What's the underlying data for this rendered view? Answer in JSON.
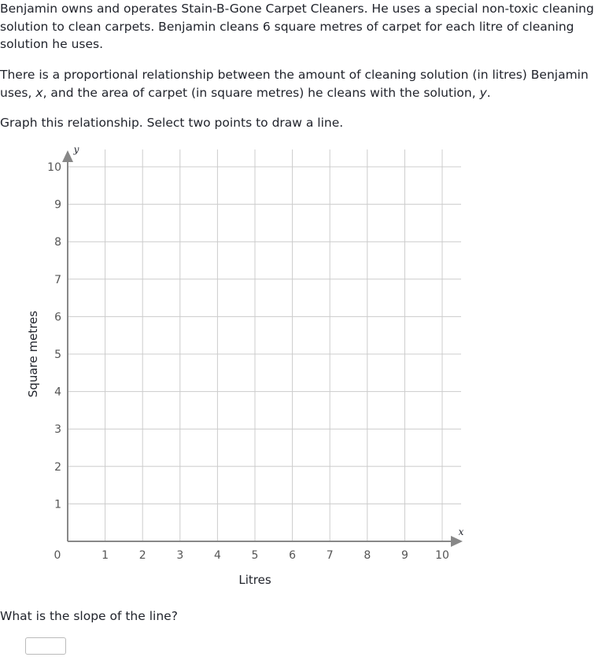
{
  "question": {
    "intro": "Benjamin owns and operates Stain-B-Gone Carpet Cleaners. He uses a special non-toxic cleaning solution to clean carpets. Benjamin cleans 6 square metres of carpet for each litre of cleaning solution he uses.",
    "relationship_before_x": "There is a proportional relationship between the amount of cleaning solution (in litres) Benjamin uses, ",
    "var_x": "x",
    "relationship_middle": ", and the area of carpet (in square metres) he cleans with the solution, ",
    "var_y": "y",
    "relationship_end": ".",
    "instruction": "Graph this relationship. Select two points to draw a line.",
    "slope_prompt": "What is the slope of the line?"
  },
  "graph": {
    "x_axis_title": "Litres",
    "y_axis_title": "Square metres",
    "x_var": "x",
    "y_var": "y",
    "origin_label": "0",
    "x_ticks": [
      "1",
      "2",
      "3",
      "4",
      "5",
      "6",
      "7",
      "8",
      "9",
      "10"
    ],
    "y_ticks": [
      "1",
      "2",
      "3",
      "4",
      "5",
      "6",
      "7",
      "8",
      "9",
      "10"
    ],
    "x_range": [
      0,
      10
    ],
    "y_range": [
      0,
      10
    ],
    "grid": true,
    "grid_color": "#cccccc",
    "axis_color": "#888888"
  },
  "answer": {
    "slope_value": ""
  }
}
